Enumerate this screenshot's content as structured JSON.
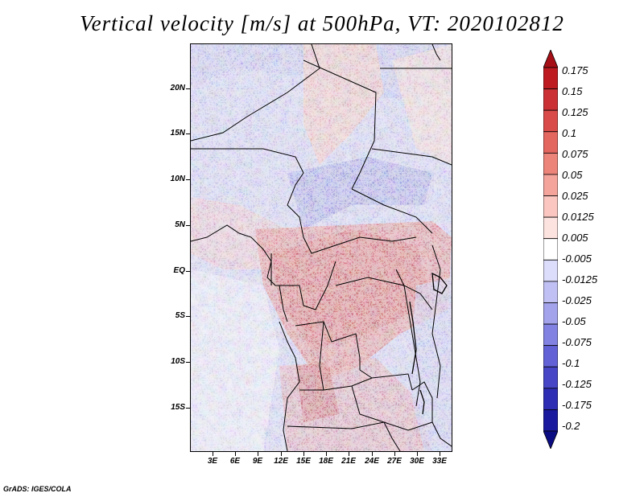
{
  "title": "Vertical velocity [m/s] at 500hPa, VT: 2020102812",
  "credit": "GrADS: IGES/COLA",
  "map": {
    "lat_labels": [
      "20N",
      "15N",
      "10N",
      "5N",
      "EQ",
      "5S",
      "10S",
      "15S"
    ],
    "lon_labels": [
      "3E",
      "6E",
      "9E",
      "12E",
      "15E",
      "18E",
      "21E",
      "24E",
      "27E",
      "30E",
      "33E"
    ]
  },
  "colorbar": {
    "labels": [
      "0.175",
      "0.15",
      "0.125",
      "0.1",
      "0.075",
      "0.05",
      "0.025",
      "0.0125",
      "0.005",
      "-0.005",
      "-0.0125",
      "-0.025",
      "-0.05",
      "-0.075",
      "-0.1",
      "-0.125",
      "-0.175",
      "-0.2"
    ],
    "colors": [
      "#a50f15",
      "#bd1b20",
      "#cb3134",
      "#d94b49",
      "#e3665f",
      "#ec8479",
      "#f4a49b",
      "#fac6bf",
      "#fde3df",
      "#ffffff",
      "#dcdcfb",
      "#c0c0f4",
      "#a3a3ec",
      "#8282e2",
      "#6262d6",
      "#4646c6",
      "#2e2eb4",
      "#1a1a9e",
      "#0c0c82"
    ]
  }
}
